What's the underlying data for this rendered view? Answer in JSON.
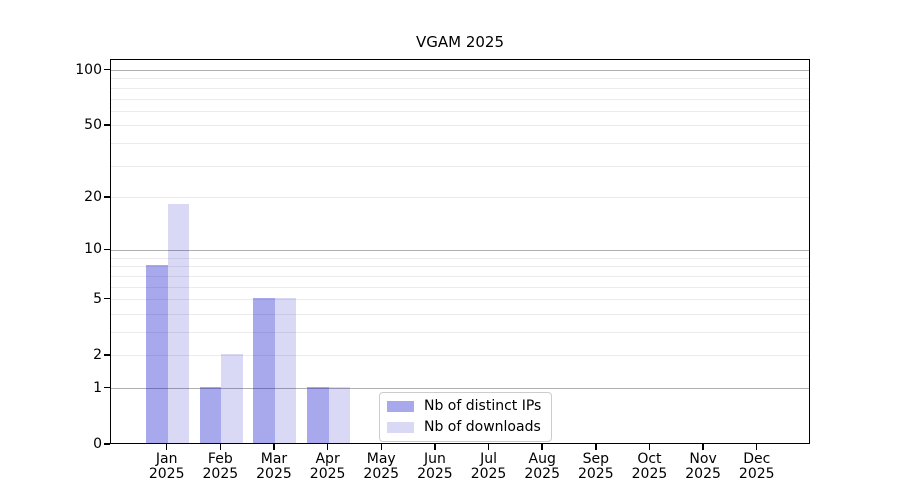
{
  "chart_data": {
    "type": "bar",
    "title": "VGAM 2025",
    "categories": [
      "Jan",
      "Feb",
      "Mar",
      "Apr",
      "May",
      "Jun",
      "Jul",
      "Aug",
      "Sep",
      "Oct",
      "Nov",
      "Dec"
    ],
    "category_year": "2025",
    "series": [
      {
        "name": "Nb of distinct IPs",
        "color": "rgba(0,0,200,0.34)",
        "values": [
          8,
          1,
          5,
          1,
          0,
          0,
          0,
          0,
          0,
          0,
          0,
          0
        ]
      },
      {
        "name": "Nb of downloads",
        "color": "rgba(0,0,190,0.15)",
        "values": [
          18,
          2,
          5,
          1,
          0,
          0,
          0,
          0,
          0,
          0,
          0,
          0
        ]
      }
    ],
    "yscale": "log1p",
    "ylim": [
      0,
      114
    ],
    "yticks": [
      0,
      1,
      2,
      5,
      10,
      20,
      50,
      100
    ],
    "gridlines_major": [
      1,
      10,
      100
    ],
    "gridlines_minor": [
      2,
      3,
      4,
      5,
      6,
      7,
      8,
      9,
      20,
      30,
      40,
      50,
      60,
      70,
      80,
      90
    ],
    "grid": "on",
    "legend_position": "lower center"
  },
  "colors": {
    "grid_major": "#b0b0b0",
    "grid_minor": "#ebebeb",
    "axis": "#000000",
    "text": "#000000",
    "legend_border": "#cccccc",
    "background": "#ffffff"
  }
}
